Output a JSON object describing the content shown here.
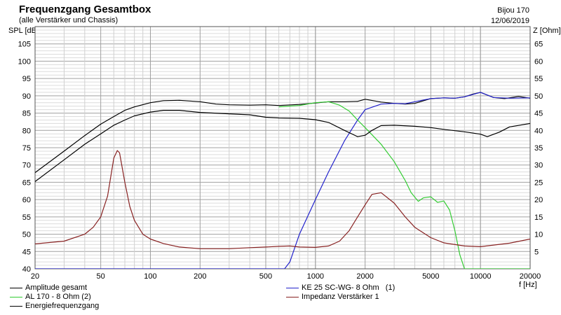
{
  "header": {
    "title": "Frequenzgang Gesamtbox",
    "subtitle": "(alle Verstärker und Chassis)",
    "project": "Bijou 170",
    "date": "12/06/2019"
  },
  "chart_data": {
    "type": "line",
    "xscale": "log",
    "xlim": [
      20,
      20000
    ],
    "ylim": [
      40,
      110
    ],
    "y2lim": [
      0,
      70
    ],
    "xlabel": "f [Hz]",
    "ylabel": "SPL [dB]",
    "y2label": "Z [Ohm]",
    "x_ticks": [
      20,
      50,
      100,
      200,
      500,
      1000,
      2000,
      5000,
      10000,
      20000
    ],
    "y_ticks": [
      40,
      45,
      50,
      55,
      60,
      65,
      70,
      75,
      80,
      85,
      90,
      95,
      100,
      105
    ],
    "y2_ticks": [
      5,
      10,
      15,
      20,
      25,
      30,
      35,
      40,
      45,
      50,
      55,
      60,
      65
    ],
    "grid": true,
    "legend_position": "bottom",
    "series": [
      {
        "name": "Amplitude gesamt",
        "color": "#000000",
        "axis": "left",
        "x": [
          20,
          30,
          40,
          50,
          60,
          70,
          80,
          100,
          120,
          150,
          200,
          250,
          300,
          400,
          500,
          600,
          800,
          1000,
          1200,
          1500,
          1800,
          2000,
          2500,
          3000,
          3500,
          4000,
          5000,
          6000,
          7000,
          8000,
          9000,
          10000,
          12000,
          14000,
          17000,
          20000
        ],
        "y": [
          67.8,
          74,
          78.5,
          81.8,
          84,
          85.8,
          86.8,
          88,
          88.6,
          88.7,
          88.3,
          87.6,
          87.4,
          87.3,
          87.4,
          87.2,
          87.5,
          87.9,
          88.3,
          88.3,
          88.4,
          89,
          88.2,
          87.8,
          87.6,
          87.8,
          89.2,
          89.4,
          89.3,
          89.7,
          90.5,
          91,
          89.5,
          89.2,
          89.8,
          89.3
        ]
      },
      {
        "name": "KE 25 SC-WG- 8 Ohm   (1)",
        "color": "#2222cc",
        "axis": "left",
        "x": [
          20,
          400,
          650,
          700,
          800,
          1000,
          1200,
          1500,
          1800,
          2000,
          2500,
          3000,
          3500,
          4000,
          5000,
          6000,
          7000,
          8000,
          10000,
          12000,
          15000,
          20000
        ],
        "y": [
          40,
          40,
          40,
          42,
          50,
          60,
          68,
          77,
          83,
          86,
          87.6,
          87.8,
          87.7,
          88.3,
          89.2,
          89.4,
          89.3,
          89.7,
          91,
          89.5,
          89.3,
          89.4
        ]
      },
      {
        "name": "AL 170 - 8 Ohm (2)",
        "color": "#33cc33",
        "axis": "left",
        "x": [
          600,
          800,
          1000,
          1200,
          1400,
          1600,
          1800,
          2000,
          2500,
          3000,
          3500,
          3800,
          4200,
          4500,
          5000,
          5500,
          6000,
          6500,
          7000,
          7500,
          8000,
          10000,
          20000
        ],
        "y": [
          86.8,
          87.2,
          88,
          88.3,
          87.3,
          85.6,
          83,
          80.8,
          76,
          71,
          65.5,
          62,
          59.5,
          60.5,
          60.8,
          59.2,
          59.6,
          57,
          51,
          44,
          40,
          40,
          40
        ]
      },
      {
        "name": "Energiefrequenzgang",
        "color": "#000000",
        "axis": "left",
        "x": [
          20,
          30,
          40,
          50,
          60,
          70,
          80,
          100,
          120,
          150,
          200,
          300,
          400,
          500,
          600,
          800,
          1000,
          1200,
          1500,
          1800,
          2000,
          2200,
          2500,
          3000,
          4000,
          5000,
          6000,
          8000,
          10000,
          11000,
          13000,
          15000,
          20000
        ],
        "y": [
          65.2,
          71.5,
          76,
          79,
          81.5,
          83,
          84.2,
          85.3,
          85.8,
          85.8,
          85.2,
          84.8,
          84.5,
          83.8,
          83.6,
          83.5,
          83.1,
          82.3,
          80,
          78.2,
          78.6,
          80,
          81.4,
          81.5,
          81.2,
          80.8,
          80.3,
          79.6,
          78.9,
          78.2,
          79.5,
          81,
          82
        ]
      },
      {
        "name": "Impedanz Verstärker 1",
        "color": "#882222",
        "axis": "right",
        "x": [
          20,
          30,
          40,
          45,
          50,
          55,
          60,
          63,
          65,
          70,
          75,
          80,
          90,
          100,
          120,
          150,
          200,
          300,
          400,
          500,
          600,
          700,
          800,
          1000,
          1200,
          1400,
          1600,
          1800,
          2000,
          2200,
          2500,
          3000,
          3500,
          4000,
          5000,
          6000,
          8000,
          10000,
          15000,
          20000
        ],
        "y": [
          7.2,
          8,
          10,
          12,
          15,
          21,
          32,
          34.2,
          33.5,
          25,
          18,
          14,
          10,
          8.6,
          7.3,
          6.3,
          5.8,
          5.8,
          6.1,
          6.3,
          6.5,
          6.6,
          6.3,
          6.2,
          6.6,
          8,
          11,
          15,
          18.5,
          21.5,
          22,
          19,
          15,
          12,
          9,
          7.5,
          6.6,
          6.4,
          7.4,
          8.6
        ]
      }
    ]
  },
  "legend": {
    "left": [
      {
        "label": "Amplitude gesamt",
        "color": "#000000"
      },
      {
        "label": "AL 170 - 8 Ohm (2)",
        "color": "#33cc33"
      },
      {
        "label": "Energiefrequenzgang",
        "color": "#000000"
      }
    ],
    "right": [
      {
        "label": "KE 25 SC-WG- 8 Ohm   (1)",
        "color": "#2222cc"
      },
      {
        "label": "Impedanz Verstärker 1",
        "color": "#882222"
      }
    ]
  }
}
